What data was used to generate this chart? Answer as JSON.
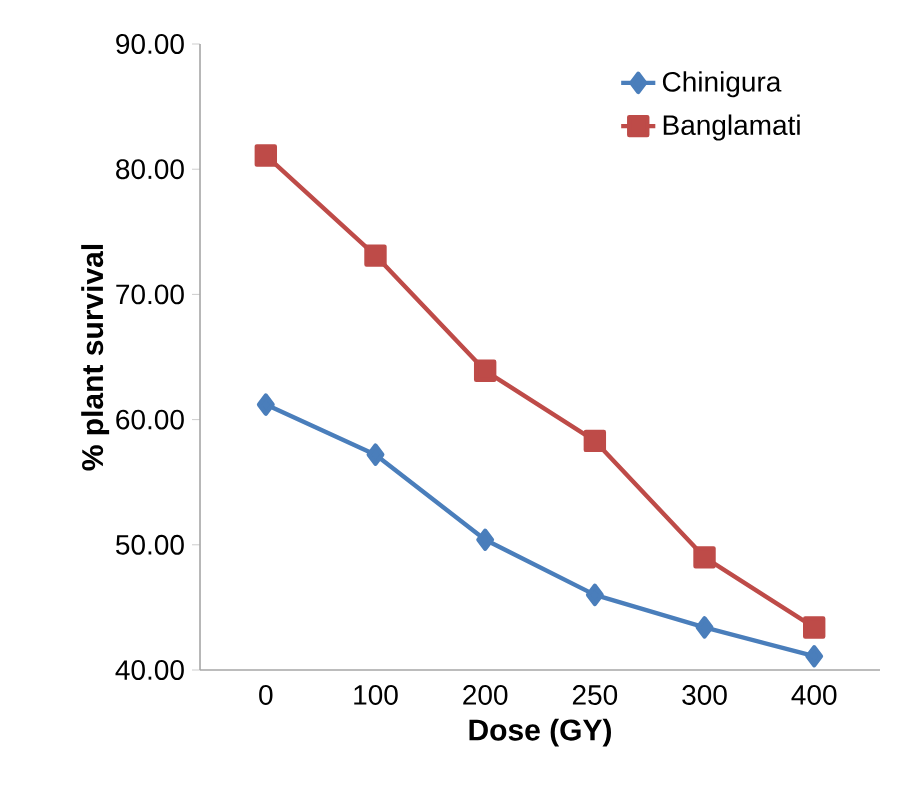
{
  "chart_data": {
    "type": "line",
    "xlabel": "Dose (GY)",
    "ylabel": "% plant survival",
    "categories": [
      "0",
      "100",
      "200",
      "250",
      "300",
      "400"
    ],
    "series": [
      {
        "name": "Chinigura",
        "color": "#4a7ebb",
        "marker": "diamond",
        "values": [
          61.2,
          57.2,
          50.4,
          46.0,
          43.4,
          41.1
        ]
      },
      {
        "name": "Banglamati",
        "color": "#be4b48",
        "marker": "square",
        "values": [
          81.1,
          73.1,
          63.9,
          58.3,
          49.0,
          43.4
        ]
      }
    ],
    "ylim": [
      40,
      90
    ],
    "yticks": [
      {
        "value": 40,
        "label": "40.00"
      },
      {
        "value": 50,
        "label": "50.00"
      },
      {
        "value": 60,
        "label": "60.00"
      },
      {
        "value": 70,
        "label": "70.00"
      },
      {
        "value": 80,
        "label": "80.00"
      },
      {
        "value": 90,
        "label": "90.00"
      }
    ],
    "legend": "top right",
    "grid": false,
    "line_style": "solid"
  }
}
